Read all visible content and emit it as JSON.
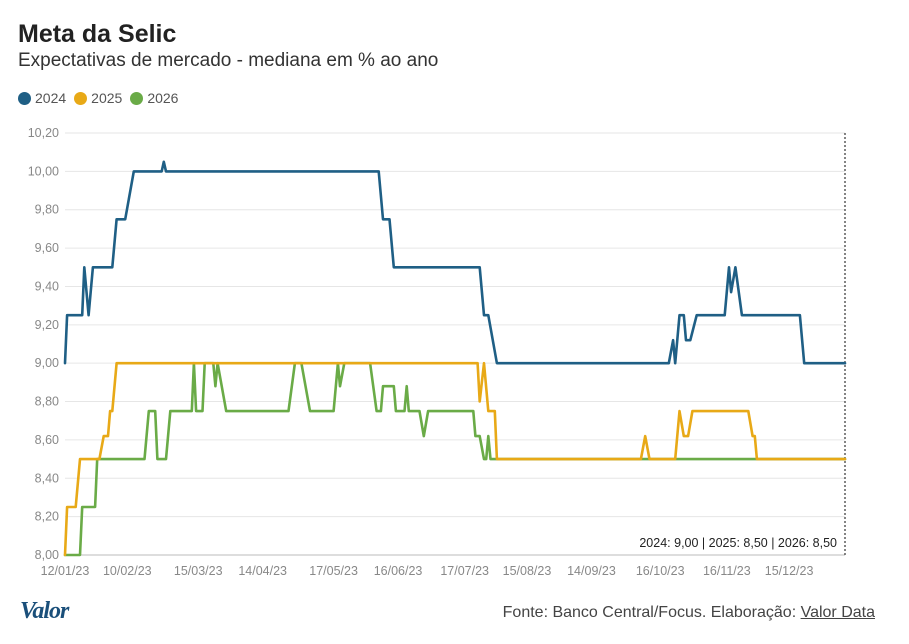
{
  "header": {
    "title": "Meta da Selic",
    "subtitle": "Expectativas de mercado - mediana em % ao ano"
  },
  "footer": {
    "logo": "Valor",
    "source_prefix": "Fonte: Banco Central/Focus. Elaboração: ",
    "source_link": "Valor Data"
  },
  "colors": {
    "2024": "#1f5f85",
    "2025": "#e8a917",
    "2026": "#6aab47"
  },
  "chart_data": {
    "type": "line",
    "title": "Meta da Selic",
    "subtitle": "Expectativas de mercado - mediana em % ao ano",
    "ylim": [
      8.0,
      10.2
    ],
    "yticks": [
      "8,00",
      "8,20",
      "8,40",
      "8,60",
      "8,80",
      "9,00",
      "9,20",
      "9,40",
      "9,60",
      "9,80",
      "10,00",
      "10,20"
    ],
    "xlim": [
      "2023-01-12",
      "2024-01-10"
    ],
    "xticks": [
      {
        "date": "2023-01-12",
        "label": "12/01/23"
      },
      {
        "date": "2023-02-10",
        "label": "10/02/23"
      },
      {
        "date": "2023-03-15",
        "label": "15/03/23"
      },
      {
        "date": "2023-04-14",
        "label": "14/04/23"
      },
      {
        "date": "2023-05-17",
        "label": "17/05/23"
      },
      {
        "date": "2023-06-16",
        "label": "16/06/23"
      },
      {
        "date": "2023-07-17",
        "label": "17/07/23"
      },
      {
        "date": "2023-08-15",
        "label": "15/08/23"
      },
      {
        "date": "2023-09-14",
        "label": "14/09/23"
      },
      {
        "date": "2023-10-16",
        "label": "16/10/23"
      },
      {
        "date": "2023-11-16",
        "label": "16/11/23"
      },
      {
        "date": "2023-12-15",
        "label": "15/12/23"
      }
    ],
    "annotation": "2024: 9,00 | 2025: 8,50 | 2026: 8,50",
    "legend_position": "top-left",
    "series": [
      {
        "name": "2024",
        "points": [
          [
            "2023-01-12",
            9.0
          ],
          [
            "2023-01-13",
            9.25
          ],
          [
            "2023-01-20",
            9.25
          ],
          [
            "2023-01-21",
            9.5
          ],
          [
            "2023-01-23",
            9.25
          ],
          [
            "2023-01-25",
            9.5
          ],
          [
            "2023-02-03",
            9.5
          ],
          [
            "2023-02-05",
            9.75
          ],
          [
            "2023-02-09",
            9.75
          ],
          [
            "2023-02-13",
            10.0
          ],
          [
            "2023-02-26",
            10.0
          ],
          [
            "2023-02-27",
            10.05
          ],
          [
            "2023-02-28",
            10.0
          ],
          [
            "2023-06-07",
            10.0
          ],
          [
            "2023-06-09",
            9.75
          ],
          [
            "2023-06-12",
            9.75
          ],
          [
            "2023-06-14",
            9.5
          ],
          [
            "2023-07-24",
            9.5
          ],
          [
            "2023-07-26",
            9.25
          ],
          [
            "2023-07-28",
            9.25
          ],
          [
            "2023-08-01",
            9.0
          ],
          [
            "2023-10-20",
            9.0
          ],
          [
            "2023-10-22",
            9.12
          ],
          [
            "2023-10-23",
            9.0
          ],
          [
            "2023-10-25",
            9.25
          ],
          [
            "2023-10-27",
            9.25
          ],
          [
            "2023-10-28",
            9.12
          ],
          [
            "2023-10-30",
            9.12
          ],
          [
            "2023-11-02",
            9.25
          ],
          [
            "2023-11-15",
            9.25
          ],
          [
            "2023-11-17",
            9.5
          ],
          [
            "2023-11-18",
            9.37
          ],
          [
            "2023-11-20",
            9.5
          ],
          [
            "2023-11-23",
            9.25
          ],
          [
            "2023-12-20",
            9.25
          ],
          [
            "2023-12-22",
            9.0
          ],
          [
            "2024-01-10",
            9.0
          ]
        ]
      },
      {
        "name": "2025",
        "points": [
          [
            "2023-01-12",
            8.0
          ],
          [
            "2023-01-13",
            8.25
          ],
          [
            "2023-01-17",
            8.25
          ],
          [
            "2023-01-19",
            8.5
          ],
          [
            "2023-01-28",
            8.5
          ],
          [
            "2023-01-30",
            8.62
          ],
          [
            "2023-02-01",
            8.62
          ],
          [
            "2023-02-02",
            8.75
          ],
          [
            "2023-02-03",
            8.75
          ],
          [
            "2023-02-05",
            9.0
          ],
          [
            "2023-07-23",
            9.0
          ],
          [
            "2023-07-24",
            8.8
          ],
          [
            "2023-07-26",
            9.0
          ],
          [
            "2023-07-28",
            8.75
          ],
          [
            "2023-07-31",
            8.75
          ],
          [
            "2023-08-01",
            8.5
          ],
          [
            "2023-10-07",
            8.5
          ],
          [
            "2023-10-09",
            8.62
          ],
          [
            "2023-10-11",
            8.5
          ],
          [
            "2023-10-23",
            8.5
          ],
          [
            "2023-10-25",
            8.75
          ],
          [
            "2023-10-27",
            8.62
          ],
          [
            "2023-10-29",
            8.62
          ],
          [
            "2023-10-31",
            8.75
          ],
          [
            "2023-11-26",
            8.75
          ],
          [
            "2023-11-28",
            8.62
          ],
          [
            "2023-11-29",
            8.62
          ],
          [
            "2023-11-30",
            8.5
          ],
          [
            "2024-01-10",
            8.5
          ]
        ]
      },
      {
        "name": "2026",
        "points": [
          [
            "2023-01-12",
            8.0
          ],
          [
            "2023-01-19",
            8.0
          ],
          [
            "2023-01-20",
            8.25
          ],
          [
            "2023-01-26",
            8.25
          ],
          [
            "2023-01-27",
            8.5
          ],
          [
            "2023-02-18",
            8.5
          ],
          [
            "2023-02-20",
            8.75
          ],
          [
            "2023-02-23",
            8.75
          ],
          [
            "2023-02-24",
            8.5
          ],
          [
            "2023-02-28",
            8.5
          ],
          [
            "2023-03-02",
            8.75
          ],
          [
            "2023-03-12",
            8.75
          ],
          [
            "2023-03-13",
            9.0
          ],
          [
            "2023-03-14",
            8.75
          ],
          [
            "2023-03-17",
            8.75
          ],
          [
            "2023-03-18",
            9.0
          ],
          [
            "2023-03-22",
            9.0
          ],
          [
            "2023-03-23",
            8.88
          ],
          [
            "2023-03-24",
            9.0
          ],
          [
            "2023-03-28",
            8.75
          ],
          [
            "2023-04-26",
            8.75
          ],
          [
            "2023-04-29",
            9.0
          ],
          [
            "2023-05-02",
            9.0
          ],
          [
            "2023-05-06",
            8.75
          ],
          [
            "2023-05-17",
            8.75
          ],
          [
            "2023-05-19",
            9.0
          ],
          [
            "2023-05-20",
            8.88
          ],
          [
            "2023-05-22",
            9.0
          ],
          [
            "2023-06-03",
            9.0
          ],
          [
            "2023-06-06",
            8.75
          ],
          [
            "2023-06-08",
            8.75
          ],
          [
            "2023-06-09",
            8.88
          ],
          [
            "2023-06-14",
            8.88
          ],
          [
            "2023-06-15",
            8.75
          ],
          [
            "2023-06-19",
            8.75
          ],
          [
            "2023-06-20",
            8.88
          ],
          [
            "2023-06-21",
            8.75
          ],
          [
            "2023-06-26",
            8.75
          ],
          [
            "2023-06-28",
            8.62
          ],
          [
            "2023-06-30",
            8.75
          ],
          [
            "2023-07-21",
            8.75
          ],
          [
            "2023-07-22",
            8.62
          ],
          [
            "2023-07-24",
            8.62
          ],
          [
            "2023-07-26",
            8.5
          ],
          [
            "2023-07-27",
            8.5
          ],
          [
            "2023-07-28",
            8.62
          ],
          [
            "2023-07-29",
            8.5
          ],
          [
            "2024-01-10",
            8.5
          ]
        ]
      }
    ]
  }
}
